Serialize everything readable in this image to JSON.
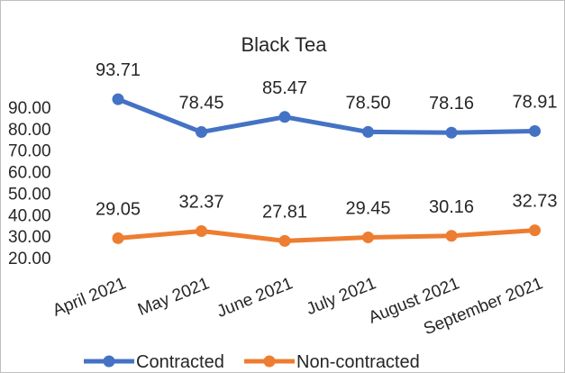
{
  "chart_data": {
    "type": "line",
    "title": "Black Tea",
    "xlabel": "",
    "ylabel": "",
    "categories": [
      "April 2021",
      "May 2021",
      "June 2021",
      "July 2021",
      "August 2021",
      "September 2021"
    ],
    "ylim": [
      20,
      90
    ],
    "yticks": [
      "20.00",
      "30.00",
      "40.00",
      "50.00",
      "60.00",
      "70.00",
      "80.00",
      "90.00"
    ],
    "grid": false,
    "legend_position": "bottom",
    "series": [
      {
        "name": "Contracted",
        "color": "#4472c4",
        "values": [
          93.71,
          78.45,
          85.47,
          78.5,
          78.16,
          78.91
        ],
        "labels": [
          "93.71",
          "78.45",
          "85.47",
          "78.50",
          "78.16",
          "78.91"
        ]
      },
      {
        "name": "Non-contracted",
        "color": "#ed7d31",
        "values": [
          29.05,
          32.37,
          27.81,
          29.45,
          30.16,
          32.73
        ],
        "labels": [
          "29.05",
          "32.37",
          "27.81",
          "29.45",
          "30.16",
          "32.73"
        ]
      }
    ]
  }
}
